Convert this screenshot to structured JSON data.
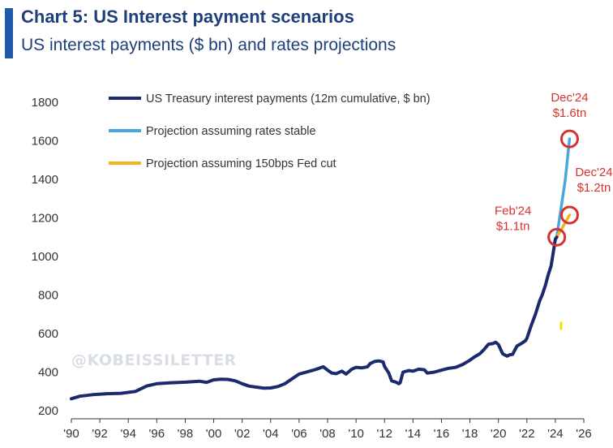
{
  "header": {
    "title": "Chart 5: US Interest payment scenarios",
    "subtitle": "US interest payments ($ bn) and rates projections"
  },
  "watermark": "@KOBEISSILETTER",
  "colors": {
    "actual": "#1a2a6c",
    "stable": "#4aa6dc",
    "cut": "#f2b320",
    "annotation": "#d6322f",
    "title": "#1f3f7a"
  },
  "chart_data": {
    "type": "line",
    "title": "Chart 5: US Interest payment scenarios",
    "subtitle": "US interest payments ($ bn) and rates projections",
    "xlabel": "",
    "ylabel": "",
    "xlim": [
      1990,
      2026
    ],
    "ylim": [
      200,
      1800
    ],
    "x_ticks": [
      "'90",
      "'92",
      "'94",
      "'96",
      "'98",
      "'00",
      "'02",
      "'04",
      "'06",
      "'08",
      "'10",
      "'12",
      "'14",
      "'16",
      "'18",
      "'20",
      "'22",
      "'24",
      "'26"
    ],
    "y_ticks": [
      200,
      400,
      600,
      800,
      1000,
      1200,
      1400,
      1600,
      1800
    ],
    "grid": false,
    "legend_position": "top-left",
    "series": [
      {
        "name": "US Treasury interest payments (12m cumulative, $ bn)",
        "color": "#1a2a6c",
        "points": [
          [
            1990,
            262
          ],
          [
            1990.6,
            275
          ],
          [
            1991.5,
            283
          ],
          [
            1992.5,
            288
          ],
          [
            1993.5,
            290
          ],
          [
            1994.5,
            300
          ],
          [
            1995.3,
            328
          ],
          [
            1996,
            340
          ],
          [
            1997,
            345
          ],
          [
            1998,
            348
          ],
          [
            1999,
            353
          ],
          [
            1999.5,
            347
          ],
          [
            2000,
            360
          ],
          [
            2000.5,
            363
          ],
          [
            2001,
            362
          ],
          [
            2001.5,
            355
          ],
          [
            2002,
            340
          ],
          [
            2002.5,
            327
          ],
          [
            2003,
            322
          ],
          [
            2003.5,
            317
          ],
          [
            2004,
            318
          ],
          [
            2004.5,
            325
          ],
          [
            2005,
            340
          ],
          [
            2005.5,
            365
          ],
          [
            2006,
            390
          ],
          [
            2006.5,
            400
          ],
          [
            2007,
            410
          ],
          [
            2007.4,
            420
          ],
          [
            2007.7,
            428
          ],
          [
            2008,
            410
          ],
          [
            2008.3,
            395
          ],
          [
            2008.6,
            392
          ],
          [
            2009,
            405
          ],
          [
            2009.3,
            390
          ],
          [
            2009.7,
            415
          ],
          [
            2010,
            425
          ],
          [
            2010.4,
            422
          ],
          [
            2010.8,
            428
          ],
          [
            2011,
            445
          ],
          [
            2011.3,
            455
          ],
          [
            2011.6,
            458
          ],
          [
            2011.9,
            453
          ],
          [
            2012,
            430
          ],
          [
            2012.3,
            395
          ],
          [
            2012.5,
            355
          ],
          [
            2012.8,
            348
          ],
          [
            2013,
            340
          ],
          [
            2013.1,
            345
          ],
          [
            2013.3,
            400
          ],
          [
            2013.7,
            408
          ],
          [
            2014,
            405
          ],
          [
            2014.4,
            415
          ],
          [
            2014.8,
            412
          ],
          [
            2015,
            395
          ],
          [
            2015.5,
            400
          ],
          [
            2016,
            410
          ],
          [
            2016.5,
            420
          ],
          [
            2017,
            425
          ],
          [
            2017.5,
            440
          ],
          [
            2018,
            462
          ],
          [
            2018.3,
            478
          ],
          [
            2018.7,
            495
          ],
          [
            2019,
            518
          ],
          [
            2019.3,
            545
          ],
          [
            2019.6,
            548
          ],
          [
            2019.8,
            555
          ],
          [
            2020,
            543
          ],
          [
            2020.3,
            495
          ],
          [
            2020.6,
            483
          ],
          [
            2020.8,
            490
          ],
          [
            2021,
            492
          ],
          [
            2021.3,
            535
          ],
          [
            2021.6,
            548
          ],
          [
            2021.9,
            563
          ],
          [
            2022,
            575
          ],
          [
            2022.3,
            640
          ],
          [
            2022.6,
            700
          ],
          [
            2022.9,
            770
          ],
          [
            2023.1,
            805
          ],
          [
            2023.3,
            850
          ],
          [
            2023.5,
            905
          ],
          [
            2023.7,
            950
          ],
          [
            2023.85,
            1020
          ],
          [
            2024.0,
            1090
          ],
          [
            2024.1,
            1100
          ]
        ]
      },
      {
        "name": "Projection assuming rates stable",
        "color": "#4aa6dc",
        "points": [
          [
            2024.1,
            1100
          ],
          [
            2024.4,
            1250
          ],
          [
            2024.7,
            1400
          ],
          [
            2025.0,
            1610
          ]
        ]
      },
      {
        "name": "Projection assuming 150bps Fed cut",
        "color": "#f2b320",
        "points": [
          [
            2024.1,
            1100
          ],
          [
            2024.5,
            1150
          ],
          [
            2025.0,
            1215
          ]
        ]
      }
    ],
    "stray_mark": {
      "x": 2024.4,
      "y": 640,
      "color": "#f2e200"
    },
    "annotations": [
      {
        "line1": "Dec'24",
        "line2": "$1.6tn",
        "x": 2025.0,
        "y": 1610
      },
      {
        "line1": "Dec'24",
        "line2": "$1.2tn",
        "x": 2025.0,
        "y": 1215
      },
      {
        "line1": "Feb'24",
        "line2": "$1.1tn",
        "x": 2024.1,
        "y": 1100
      }
    ]
  }
}
